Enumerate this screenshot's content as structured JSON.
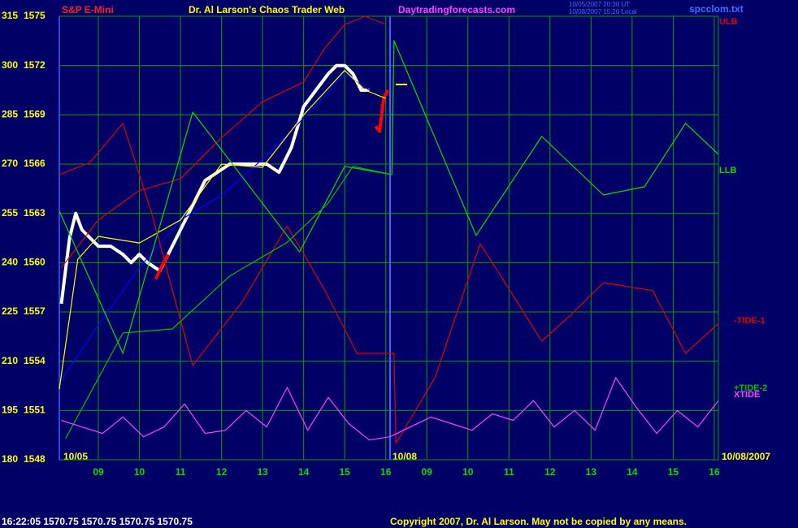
{
  "chart_data": {
    "type": "line",
    "title": "Dr. Al Larson's Chaos Trader Web",
    "subtitle": "S&P E-Mini",
    "site": "Daytradingforecasts.com",
    "file": "spcclom.txt",
    "stamp_lines": [
      "10/05/2007 20:30 UT",
      "10/08/2007 15:20 Local"
    ],
    "date_labels": [
      "10/05",
      "10/08",
      "10/08/2007"
    ],
    "footer_quote": "16:22:05  1570.75 1570.75 1570.75 1570.75",
    "copyright": "Copyright 2007, Dr. Al Larson. May not be copied by any means.",
    "grid": true,
    "xlim": [
      0.05,
      16.1
    ],
    "xticks": [
      {
        "value": 1,
        "label": "09"
      },
      {
        "value": 2,
        "label": "10"
      },
      {
        "value": 3,
        "label": "11"
      },
      {
        "value": 4,
        "label": "12"
      },
      {
        "value": 5,
        "label": "13"
      },
      {
        "value": 6,
        "label": "14"
      },
      {
        "value": 7,
        "label": "15"
      },
      {
        "value": 8,
        "label": "16"
      },
      {
        "value": 9,
        "label": "09"
      },
      {
        "value": 10,
        "label": "10"
      },
      {
        "value": 11,
        "label": "11"
      },
      {
        "value": 12,
        "label": "12"
      },
      {
        "value": 13,
        "label": "13"
      },
      {
        "value": 14,
        "label": "14"
      },
      {
        "value": 15,
        "label": "15"
      },
      {
        "value": 16,
        "label": "16"
      }
    ],
    "ylim": [
      180,
      315
    ],
    "yticks": [
      180,
      195,
      210,
      225,
      240,
      255,
      270,
      285,
      300,
      315
    ],
    "y2lim": [
      1548,
      1575
    ],
    "y2ticks": [
      1548,
      1551,
      1554,
      1557,
      1560,
      1563,
      1566,
      1569,
      1572,
      1575
    ],
    "series": [
      {
        "color": "#ffffff",
        "axis": "y2",
        "x": [
          0.1,
          0.3,
          0.45,
          0.6,
          0.8,
          1.0,
          1.3,
          1.6,
          1.8,
          2.0,
          2.2,
          2.5,
          2.8,
          3.0,
          3.3,
          3.6,
          3.9,
          4.2,
          4.5,
          4.8,
          5.1,
          5.4,
          5.7,
          6.0,
          6.3,
          6.6,
          6.8,
          7.0,
          7.2,
          7.4,
          7.6
        ],
        "values": [
          1557.5,
          1561.5,
          1563,
          1562,
          1561.5,
          1561,
          1561,
          1560.5,
          1560,
          1560.5,
          1560,
          1559.5,
          1561,
          1562,
          1563.5,
          1565,
          1565.5,
          1566,
          1566,
          1566,
          1566,
          1565.5,
          1567,
          1569.5,
          1570.5,
          1571.5,
          1572,
          1572,
          1571.5,
          1570.5,
          1570.5
        ]
      },
      {
        "color": "#ff0000",
        "axis": "y2",
        "x": [
          2.4,
          2.55,
          2.7,
          7.7,
          7.75,
          7.85,
          7.95,
          8.05
        ],
        "values": [
          1559,
          1559.8,
          1560.5,
          null,
          1568.3,
          1568,
          1570,
          1570.5
        ]
      },
      {
        "name": "ULB",
        "color": "#e00000",
        "axis": "y2",
        "x": [
          0.1,
          1,
          2,
          3,
          4,
          5,
          6,
          6.5,
          7,
          7.5,
          8
        ],
        "values": [
          1559.7,
          1562.6,
          1564.4,
          1565.1,
          1567.6,
          1569.8,
          1571,
          1573,
          1574.5,
          1575,
          1574.5
        ]
      },
      {
        "color": "#0000ff",
        "axis": "y2",
        "x": [
          0.05,
          1,
          2,
          3,
          4,
          5,
          6,
          7,
          7.6
        ],
        "values": [
          1552.7,
          1556.2,
          1559.7,
          1562.6,
          1564.1,
          1566.3,
          1568.8,
          1571.5,
          1570.5
        ]
      },
      {
        "color": "#ffff00",
        "axis": "y2",
        "x": [
          0.05,
          0.5,
          1,
          2,
          3,
          4,
          5,
          6,
          7,
          7.5,
          8
        ],
        "values": [
          1552.3,
          1560.2,
          1561.6,
          1561.2,
          1562.6,
          1566,
          1565.8,
          1569,
          1571.7,
          1570.5,
          1570
        ]
      },
      {
        "name": "-TIDE-1",
        "color": "#e00000",
        "x": [
          0.05,
          0.8,
          1.6,
          2.3,
          3.3,
          4.5,
          5.6,
          6.5,
          7.3,
          8.2,
          8.25,
          9.2,
          10.3,
          11.0,
          11.8,
          12.5,
          13.3,
          14.5,
          15.3,
          16.1
        ],
        "values": [
          266.8,
          270.5,
          282.4,
          255,
          208.7,
          228,
          251.2,
          232,
          212.4,
          212.4,
          185,
          205,
          245.8,
          232,
          216.1,
          224,
          233.9,
          231.5,
          212.4,
          221.5
        ]
      },
      {
        "name": "LLB",
        "color": "#00e000",
        "x": [
          0.05,
          1.6,
          3.3,
          5.9,
          7.0,
          8.15,
          8.2,
          10.2,
          11.8,
          13.3,
          14.3,
          15.3,
          16.1
        ],
        "values": [
          255.7,
          212.4,
          285.8,
          243.3,
          269.3,
          266.8,
          307.6,
          248.3,
          278.4,
          260.6,
          263.1,
          282.4,
          273.0
        ]
      },
      {
        "name": "+TIDE-2",
        "color": "#00c000",
        "x": [
          0.2,
          1.6,
          2.8,
          4.2,
          5.6,
          6.6,
          7.2,
          8.15
        ],
        "values": [
          186.4,
          218.6,
          219.8,
          235.9,
          246.2,
          258.1,
          269.3,
          266.8
        ]
      },
      {
        "name": "XTIDE",
        "color": "#ff40ff",
        "x": [
          0.1,
          0.6,
          1.1,
          1.6,
          2.1,
          2.6,
          3.1,
          3.6,
          4.1,
          4.6,
          5.1,
          5.6,
          6.1,
          6.6,
          7.1,
          7.6,
          8.1,
          8.6,
          9.1,
          9.6,
          10.1,
          10.6,
          11.1,
          11.6,
          12.1,
          12.6,
          13.1,
          13.6,
          14.1,
          14.6,
          15.1,
          15.6,
          16.1
        ],
        "values": [
          192,
          190,
          188,
          193,
          187,
          190,
          197,
          188,
          189,
          195,
          190,
          202,
          189,
          199,
          191,
          186,
          187,
          190,
          193,
          191,
          189,
          194,
          192,
          198,
          190,
          195,
          189,
          205,
          196,
          188,
          195,
          190,
          198
        ]
      }
    ]
  }
}
